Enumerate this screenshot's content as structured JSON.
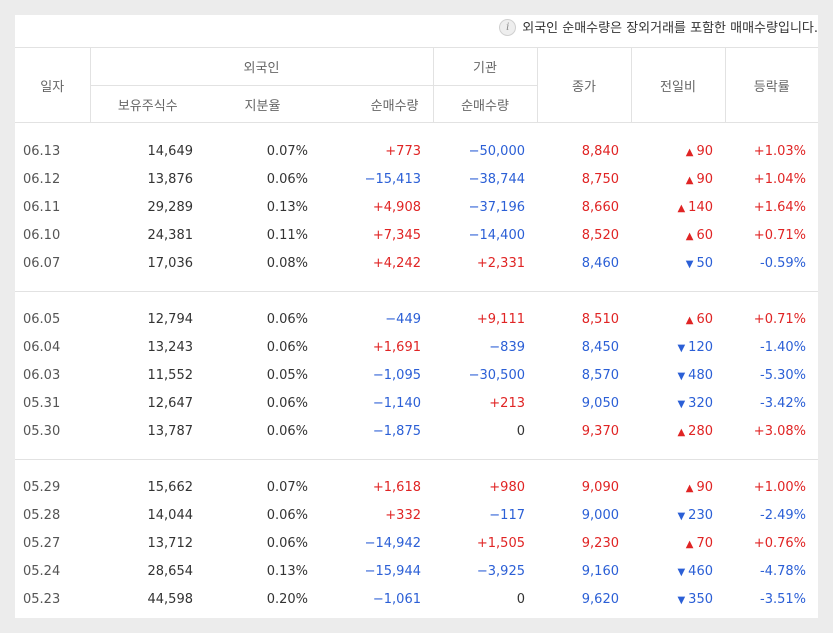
{
  "notice": "외국인 순매수량은 장외거래를 포함한 매매수량입니다.",
  "headers": {
    "date": "일자",
    "foreign": "외국인",
    "institution": "기관",
    "holdings": "보유주식수",
    "share": "지분율",
    "foreign_net": "순매수량",
    "inst_net": "순매수량",
    "close": "종가",
    "change": "전일비",
    "rate": "등락률"
  },
  "colors": {
    "up": "#e02424",
    "down": "#2b5fd6"
  },
  "groups": [
    [
      {
        "date": "06.13",
        "holdings": "14,649",
        "share": "0.07%",
        "foreign_net": "+773",
        "inst_net": "−50,000",
        "close": "8,840",
        "dir": "up",
        "change": "90",
        "rate": "+1.03%"
      },
      {
        "date": "06.12",
        "holdings": "13,876",
        "share": "0.06%",
        "foreign_net": "−15,413",
        "inst_net": "−38,744",
        "close": "8,750",
        "dir": "up",
        "change": "90",
        "rate": "+1.04%"
      },
      {
        "date": "06.11",
        "holdings": "29,289",
        "share": "0.13%",
        "foreign_net": "+4,908",
        "inst_net": "−37,196",
        "close": "8,660",
        "dir": "up",
        "change": "140",
        "rate": "+1.64%"
      },
      {
        "date": "06.10",
        "holdings": "24,381",
        "share": "0.11%",
        "foreign_net": "+7,345",
        "inst_net": "−14,400",
        "close": "8,520",
        "dir": "up",
        "change": "60",
        "rate": "+0.71%"
      },
      {
        "date": "06.07",
        "holdings": "17,036",
        "share": "0.08%",
        "foreign_net": "+4,242",
        "inst_net": "+2,331",
        "close": "8,460",
        "dir": "down",
        "change": "50",
        "rate": "-0.59%"
      }
    ],
    [
      {
        "date": "06.05",
        "holdings": "12,794",
        "share": "0.06%",
        "foreign_net": "−449",
        "inst_net": "+9,111",
        "close": "8,510",
        "dir": "up",
        "change": "60",
        "rate": "+0.71%"
      },
      {
        "date": "06.04",
        "holdings": "13,243",
        "share": "0.06%",
        "foreign_net": "+1,691",
        "inst_net": "−839",
        "close": "8,450",
        "dir": "down",
        "change": "120",
        "rate": "-1.40%"
      },
      {
        "date": "06.03",
        "holdings": "11,552",
        "share": "0.05%",
        "foreign_net": "−1,095",
        "inst_net": "−30,500",
        "close": "8,570",
        "dir": "down",
        "change": "480",
        "rate": "-5.30%"
      },
      {
        "date": "05.31",
        "holdings": "12,647",
        "share": "0.06%",
        "foreign_net": "−1,140",
        "inst_net": "+213",
        "close": "9,050",
        "dir": "down",
        "change": "320",
        "rate": "-3.42%"
      },
      {
        "date": "05.30",
        "holdings": "13,787",
        "share": "0.06%",
        "foreign_net": "−1,875",
        "inst_net": "0",
        "close": "9,370",
        "dir": "up",
        "change": "280",
        "rate": "+3.08%"
      }
    ],
    [
      {
        "date": "05.29",
        "holdings": "15,662",
        "share": "0.07%",
        "foreign_net": "+1,618",
        "inst_net": "+980",
        "close": "9,090",
        "dir": "up",
        "change": "90",
        "rate": "+1.00%"
      },
      {
        "date": "05.28",
        "holdings": "14,044",
        "share": "0.06%",
        "foreign_net": "+332",
        "inst_net": "−117",
        "close": "9,000",
        "dir": "down",
        "change": "230",
        "rate": "-2.49%"
      },
      {
        "date": "05.27",
        "holdings": "13,712",
        "share": "0.06%",
        "foreign_net": "−14,942",
        "inst_net": "+1,505",
        "close": "9,230",
        "dir": "up",
        "change": "70",
        "rate": "+0.76%"
      },
      {
        "date": "05.24",
        "holdings": "28,654",
        "share": "0.13%",
        "foreign_net": "−15,944",
        "inst_net": "−3,925",
        "close": "9,160",
        "dir": "down",
        "change": "460",
        "rate": "-4.78%"
      },
      {
        "date": "05.23",
        "holdings": "44,598",
        "share": "0.20%",
        "foreign_net": "−1,061",
        "inst_net": "0",
        "close": "9,620",
        "dir": "down",
        "change": "350",
        "rate": "-3.51%"
      }
    ]
  ]
}
